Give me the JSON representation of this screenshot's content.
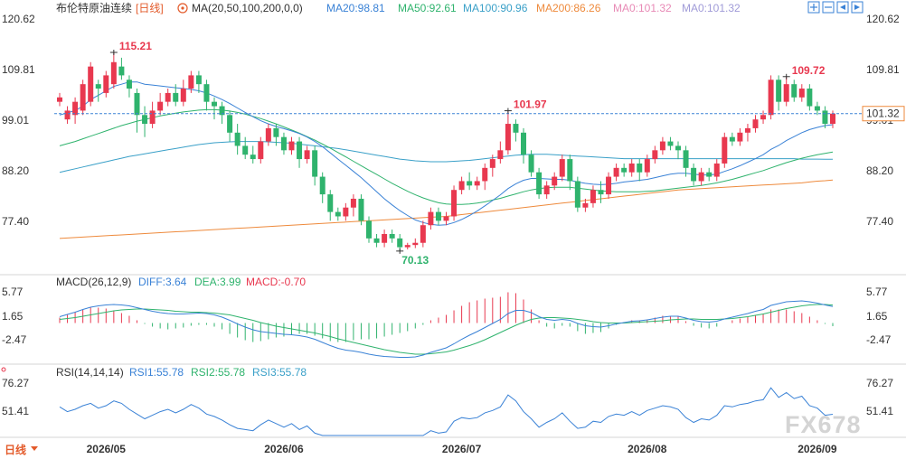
{
  "header": {
    "title": "布伦特原油连续",
    "period": "[日线]",
    "ma_label": "MA(20,50,100,200,0,0)",
    "ma_values": [
      {
        "label": "MA20:98.81",
        "color": "#3a82d6"
      },
      {
        "label": "MA50:92.61",
        "color": "#2fb36d"
      },
      {
        "label": "MA100:90.96",
        "color": "#3aa0c8"
      },
      {
        "label": "MA200:86.26",
        "color": "#ee8a3c"
      },
      {
        "label": "MA0:101.32",
        "color": "#e88ab6"
      },
      {
        "label": "MA0:101.32",
        "color": "#a09bd8"
      }
    ]
  },
  "macd_header": {
    "label": "MACD(26,12,9)",
    "diff": "DIFF:3.64",
    "dea": "DEA:3.99",
    "macd": "MACD:-0.70"
  },
  "rsi_header": {
    "label": "RSI(14,14,14)",
    "rsi1": "RSI1:55.78",
    "rsi2": "RSI2:55.78",
    "rsi3": "RSI3:55.78"
  },
  "period_button": "日线",
  "watermark": "FX678",
  "colors": {
    "up": "#e8384f",
    "down": "#2fb36d",
    "ma20": "#3a82d6",
    "ma50": "#2fb36d",
    "ma100": "#3aa0c8",
    "ma200": "#ee8a3c",
    "diff": "#3a82d6",
    "dea": "#2fb36d",
    "rsi": "#3a82d6",
    "price_line": "#3a82d6"
  },
  "chart_data": {
    "type": "candlestick",
    "price_axis": {
      "ticks": [
        "120.62",
        "109.81",
        "99.01",
        "88.20",
        "77.40"
      ],
      "range": [
        66,
        123
      ]
    },
    "current_price": "101.32",
    "current_value": 101.32,
    "markers": {
      "high1": {
        "label": "115.21",
        "value": 115.21
      },
      "high2": {
        "label": "101.97",
        "value": 101.97
      },
      "high3": {
        "label": "109.72",
        "value": 109.72
      },
      "low1": {
        "label": "70.13",
        "value": 70.13
      }
    },
    "dates": [
      "2026/05",
      "2026/06",
      "2026/07",
      "2026/08",
      "2026/09"
    ],
    "date_anchor": [
      6,
      29,
      52,
      76,
      98
    ],
    "candles": [
      [
        104,
        105,
        103,
        106
      ],
      [
        100,
        102,
        99,
        103
      ],
      [
        101,
        104,
        99,
        105
      ],
      [
        102,
        108,
        101,
        109
      ],
      [
        104,
        112,
        103,
        113
      ],
      [
        108,
        107,
        104,
        109
      ],
      [
        106,
        110,
        105,
        111
      ],
      [
        108,
        113,
        107,
        115.21
      ],
      [
        112,
        110,
        109,
        114
      ],
      [
        109,
        107,
        105,
        110
      ],
      [
        106,
        101,
        97,
        107
      ],
      [
        101,
        99,
        96,
        103
      ],
      [
        99,
        102,
        98,
        104
      ],
      [
        102,
        104,
        101,
        106
      ],
      [
        104,
        106,
        103,
        107
      ],
      [
        106,
        104,
        103,
        108
      ],
      [
        104,
        107,
        103,
        109
      ],
      [
        107,
        110,
        106,
        111
      ],
      [
        110,
        108,
        106,
        111
      ],
      [
        108,
        104,
        102,
        109
      ],
      [
        104,
        103,
        100,
        105
      ],
      [
        103,
        101,
        99,
        104
      ],
      [
        101,
        97,
        95,
        102
      ],
      [
        97,
        94,
        92,
        99
      ],
      [
        94,
        92,
        91,
        96
      ],
      [
        92,
        91,
        90,
        94
      ],
      [
        91,
        95,
        90,
        96
      ],
      [
        95,
        98,
        94,
        99
      ],
      [
        98,
        96,
        94,
        99
      ],
      [
        96,
        93,
        92,
        97
      ],
      [
        93,
        95,
        92,
        96
      ],
      [
        95,
        91,
        89,
        96
      ],
      [
        91,
        93,
        90,
        94
      ],
      [
        93,
        87,
        85,
        94
      ],
      [
        87,
        83,
        81,
        88
      ],
      [
        83,
        79,
        77,
        84
      ],
      [
        79,
        78,
        77,
        80
      ],
      [
        78,
        80,
        77,
        81
      ],
      [
        80,
        82,
        78,
        83
      ],
      [
        82,
        77,
        76,
        83
      ],
      [
        77,
        73,
        72,
        78
      ],
      [
        73,
        72,
        71,
        74
      ],
      [
        72,
        74,
        71,
        75
      ],
      [
        74,
        73,
        72,
        75
      ],
      [
        73,
        71,
        70.13,
        74
      ],
      [
        71,
        71.5,
        70.5,
        72
      ],
      [
        71.5,
        72,
        70.8,
        73
      ],
      [
        72,
        76,
        71,
        77
      ],
      [
        76,
        79,
        75,
        80
      ],
      [
        79,
        77,
        76,
        80
      ],
      [
        77,
        78,
        76,
        79
      ],
      [
        78,
        84,
        77,
        85
      ],
      [
        84,
        86,
        83,
        87
      ],
      [
        86,
        85,
        84,
        88
      ],
      [
        85,
        86,
        84,
        87
      ],
      [
        86,
        89,
        84,
        90
      ],
      [
        89,
        91,
        87,
        92
      ],
      [
        91,
        93,
        90,
        95
      ],
      [
        93,
        99,
        92,
        101.97
      ],
      [
        99,
        97,
        95,
        100
      ],
      [
        97,
        92,
        90,
        98
      ],
      [
        92,
        88,
        87,
        93
      ],
      [
        88,
        83,
        82,
        89
      ],
      [
        83,
        85,
        82,
        86
      ],
      [
        85,
        87,
        84,
        88
      ],
      [
        87,
        91,
        86,
        92
      ],
      [
        91,
        86,
        84,
        92
      ],
      [
        86,
        80,
        79,
        87
      ],
      [
        80,
        81,
        79,
        82
      ],
      [
        81,
        84,
        80,
        85
      ],
      [
        84,
        83,
        81,
        86
      ],
      [
        83,
        87,
        82,
        88
      ],
      [
        87,
        89,
        86,
        90
      ],
      [
        89,
        88,
        87,
        90
      ],
      [
        88,
        90,
        87,
        91
      ],
      [
        90,
        88,
        86,
        91
      ],
      [
        88,
        91,
        87,
        92
      ],
      [
        91,
        93,
        90,
        94
      ],
      [
        93,
        95,
        92,
        96
      ],
      [
        95,
        94,
        93,
        96
      ],
      [
        94,
        93,
        91,
        95
      ],
      [
        93,
        89,
        87,
        94
      ],
      [
        89,
        86,
        85,
        90
      ],
      [
        86,
        88,
        85,
        89
      ],
      [
        88,
        87,
        86,
        89
      ],
      [
        87,
        90,
        86,
        91
      ],
      [
        90,
        96,
        89,
        97
      ],
      [
        96,
        95,
        94,
        97
      ],
      [
        95,
        97,
        94,
        98
      ],
      [
        97,
        98,
        95,
        99
      ],
      [
        98,
        100,
        97,
        101
      ],
      [
        100,
        101,
        99,
        102
      ],
      [
        101,
        109,
        100,
        110
      ],
      [
        109,
        104,
        102,
        110
      ],
      [
        104,
        108,
        103,
        109.72
      ],
      [
        108,
        105,
        104,
        109
      ],
      [
        105,
        107,
        104,
        108
      ],
      [
        107,
        103,
        102,
        108
      ],
      [
        103,
        102,
        101,
        104
      ],
      [
        102,
        99,
        98,
        103
      ],
      [
        99,
        101.32,
        98,
        102
      ]
    ],
    "ma20": [
      101,
      101.5,
      102,
      103,
      104.5,
      105.5,
      106.5,
      107.5,
      108,
      108.5,
      108.5,
      108,
      107.8,
      107.6,
      107.4,
      107.2,
      107,
      106.8,
      106.5,
      106,
      105.3,
      104.5,
      103.6,
      102.6,
      101.6,
      100.6,
      99.7,
      99,
      98.4,
      97.9,
      97.4,
      96.8,
      96,
      95,
      93.8,
      92.4,
      91,
      89.6,
      88.2,
      86.8,
      85.2,
      83.6,
      82,
      80.6,
      79.3,
      78.2,
      77.2,
      76.6,
      76.2,
      76,
      76.1,
      76.6,
      77.3,
      78.2,
      79.2,
      80.4,
      81.6,
      82.9,
      84.3,
      85.4,
      86.2,
      86.6,
      86.6,
      86.5,
      86.4,
      86.4,
      86.2,
      85.8,
      85.5,
      85.3,
      85.2,
      85.3,
      85.5,
      85.8,
      86,
      86.2,
      86.4,
      86.8,
      87.2,
      87.6,
      87.8,
      87.8,
      87.6,
      87.4,
      87.4,
      87.6,
      88.2,
      88.8,
      89.5,
      90.3,
      91.1,
      92,
      93.2,
      94.1,
      95.2,
      96.1,
      97,
      97.7,
      98.2,
      98.6,
      98.81
    ],
    "ma50": [
      94,
      94.5,
      95,
      95.6,
      96.2,
      96.8,
      97.4,
      98,
      98.6,
      99.1,
      99.6,
      100,
      100.4,
      100.8,
      101.1,
      101.4,
      101.7,
      101.9,
      102.1,
      102.2,
      102.2,
      102.1,
      101.9,
      101.6,
      101.2,
      100.7,
      100.2,
      99.6,
      99,
      98.3,
      97.6,
      96.9,
      96.1,
      95.3,
      94.4,
      93.5,
      92.5,
      91.5,
      90.5,
      89.5,
      88.5,
      87.5,
      86.5,
      85.5,
      84.6,
      83.7,
      82.9,
      82.2,
      81.6,
      81.1,
      80.8,
      80.7,
      80.7,
      80.8,
      81,
      81.3,
      81.7,
      82.1,
      82.6,
      83.1,
      83.6,
      84,
      84.3,
      84.5,
      84.6,
      84.6,
      84.6,
      84.4,
      84.2,
      84,
      83.8,
      83.7,
      83.6,
      83.6,
      83.6,
      83.6,
      83.7,
      83.8,
      84,
      84.2,
      84.4,
      84.6,
      84.8,
      85,
      85.3,
      85.6,
      86,
      86.4,
      86.9,
      87.4,
      87.9,
      88.4,
      89,
      89.6,
      90.2,
      90.7,
      91.2,
      91.6,
      92,
      92.3,
      92.61
    ],
    "ma100": [
      88,
      88.4,
      88.8,
      89.2,
      89.6,
      90,
      90.4,
      90.8,
      91.2,
      91.6,
      91.9,
      92.2,
      92.5,
      92.8,
      93.1,
      93.4,
      93.7,
      94,
      94.3,
      94.5,
      94.7,
      94.8,
      94.9,
      95,
      95,
      95,
      95,
      94.9,
      94.8,
      94.7,
      94.6,
      94.4,
      94.2,
      94,
      93.8,
      93.6,
      93.4,
      93.1,
      92.8,
      92.5,
      92.2,
      91.9,
      91.6,
      91.3,
      91,
      90.8,
      90.6,
      90.5,
      90.4,
      90.4,
      90.4,
      90.5,
      90.6,
      90.7,
      90.9,
      91.1,
      91.3,
      91.5,
      91.7,
      91.9,
      92,
      92.1,
      92.1,
      92.1,
      92,
      91.9,
      91.8,
      91.7,
      91.6,
      91.5,
      91.4,
      91.3,
      91.2,
      91.1,
      91.1,
      91.1,
      91.1,
      91.1,
      91.1,
      91.1,
      91.1,
      91.1,
      91.1,
      91.1,
      91.1,
      91.1,
      91.1,
      91.1,
      91.1,
      91.1,
      91.1,
      91.1,
      91.1,
      91.1,
      91.1,
      91.1,
      91,
      91,
      91,
      90.98,
      90.96
    ],
    "ma200": [
      73,
      73.1,
      73.2,
      73.3,
      73.4,
      73.5,
      73.6,
      73.7,
      73.8,
      73.9,
      74,
      74.1,
      74.2,
      74.3,
      74.4,
      74.5,
      74.6,
      74.7,
      74.8,
      74.9,
      75,
      75.1,
      75.2,
      75.3,
      75.4,
      75.5,
      75.6,
      75.7,
      75.8,
      75.9,
      76,
      76.1,
      76.2,
      76.3,
      76.4,
      76.5,
      76.6,
      76.7,
      76.8,
      76.9,
      77,
      77.1,
      77.2,
      77.3,
      77.4,
      77.5,
      77.6,
      77.7,
      77.8,
      77.9,
      78,
      78.2,
      78.4,
      78.6,
      78.8,
      79,
      79.2,
      79.4,
      79.6,
      79.8,
      80,
      80.2,
      80.4,
      80.6,
      80.8,
      81,
      81.2,
      81.4,
      81.6,
      81.8,
      82,
      82.2,
      82.4,
      82.6,
      82.8,
      83,
      83.2,
      83.4,
      83.6,
      83.8,
      84,
      84.1,
      84.2,
      84.3,
      84.4,
      84.5,
      84.6,
      84.7,
      84.8,
      84.9,
      85,
      85.1,
      85.2,
      85.3,
      85.4,
      85.5,
      85.6,
      85.8,
      86,
      86.1,
      86.26
    ],
    "macd": {
      "ticks": [
        "5.77",
        "1.65",
        "-2.47"
      ],
      "range": [
        -8.5,
        7.5
      ],
      "diff": [
        1.4,
        1.9,
        2.4,
        3,
        3.5,
        3.8,
        4,
        4.1,
        4,
        3.8,
        3.4,
        3,
        2.6,
        2.3,
        2.1,
        2,
        2,
        2.1,
        2.2,
        2.1,
        1.8,
        1.3,
        0.6,
        -0.2,
        -0.9,
        -1.5,
        -1.9,
        -2.1,
        -2.3,
        -2.5,
        -2.6,
        -2.8,
        -3.1,
        -3.6,
        -4.3,
        -5,
        -5.6,
        -6,
        -6.2,
        -6.5,
        -6.9,
        -7.2,
        -7.4,
        -7.5,
        -7.6,
        -7.6,
        -7.5,
        -7.1,
        -6.5,
        -6,
        -5.5,
        -4.6,
        -3.6,
        -2.7,
        -1.9,
        -1,
        -0.1,
        0.8,
        2.1,
        2.8,
        2.8,
        2.3,
        1.4,
        0.8,
        0.6,
        0.8,
        0.6,
        -0.1,
        -0.6,
        -0.8,
        -0.9,
        -0.6,
        -0.2,
        0.1,
        0.4,
        0.5,
        0.7,
        1,
        1.3,
        1.5,
        1.5,
        1.1,
        0.6,
        0.3,
        0.2,
        0.4,
        0.9,
        1.3,
        1.7,
        2.1,
        2.6,
        3,
        3.9,
        4.3,
        4.7,
        4.8,
        4.9,
        4.7,
        4.4,
        4,
        3.64
      ],
      "dea": [
        0.8,
        1,
        1.2,
        1.5,
        1.8,
        2.1,
        2.4,
        2.7,
        2.9,
        3,
        3.1,
        3.1,
        3,
        2.9,
        2.8,
        2.6,
        2.5,
        2.4,
        2.4,
        2.3,
        2.2,
        2,
        1.8,
        1.4,
        1,
        0.6,
        0.1,
        -0.3,
        -0.7,
        -1,
        -1.3,
        -1.6,
        -1.9,
        -2.2,
        -2.6,
        -3,
        -3.5,
        -3.9,
        -4.3,
        -4.7,
        -5.1,
        -5.5,
        -5.9,
        -6.2,
        -6.5,
        -6.7,
        -6.9,
        -6.9,
        -6.8,
        -6.6,
        -6.4,
        -6,
        -5.5,
        -5,
        -4.4,
        -3.7,
        -2.9,
        -2.1,
        -1.3,
        -0.5,
        0.2,
        0.8,
        1.1,
        1.2,
        1.2,
        1.1,
        1,
        0.8,
        0.6,
        0.3,
        0.1,
        0,
        0,
        0,
        0.1,
        0.2,
        0.3,
        0.4,
        0.5,
        0.7,
        0.8,
        0.9,
        0.9,
        0.8,
        0.8,
        0.8,
        0.9,
        1,
        1.2,
        1.4,
        1.7,
        2,
        2.4,
        2.8,
        3.2,
        3.5,
        3.8,
        4,
        4.1,
        4.1,
        3.99
      ]
    },
    "rsi": {
      "ticks": [
        "76.27",
        "51.41"
      ],
      "range": [
        38,
        85
      ],
      "values": [
        62,
        58,
        60,
        63,
        65,
        61,
        63,
        67,
        65,
        60,
        56,
        52,
        55,
        58,
        60,
        57,
        60,
        64,
        61,
        56,
        54,
        51,
        47,
        44,
        43,
        42,
        47,
        51,
        48,
        45,
        48,
        43,
        46,
        40,
        36,
        33,
        33,
        36,
        38,
        33,
        30,
        29,
        32,
        30,
        28,
        29,
        30,
        37,
        42,
        40,
        41,
        50,
        53,
        52,
        53,
        57,
        59,
        62,
        72,
        67,
        58,
        52,
        45,
        49,
        52,
        57,
        50,
        44,
        45,
        50,
        49,
        54,
        56,
        55,
        58,
        55,
        59,
        61,
        63,
        62,
        60,
        53,
        49,
        52,
        51,
        55,
        63,
        62,
        64,
        65,
        67,
        68,
        78,
        70,
        74,
        69,
        71,
        63,
        61,
        55,
        55.78
      ]
    }
  }
}
